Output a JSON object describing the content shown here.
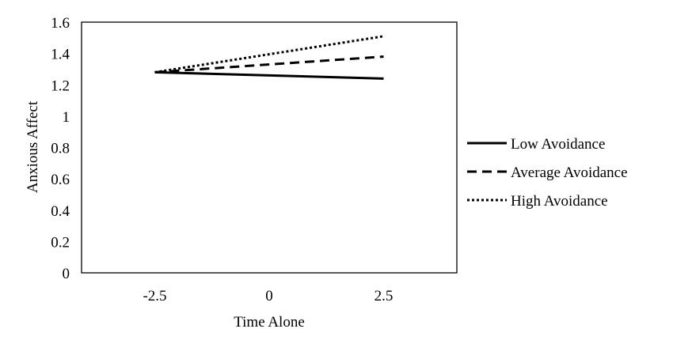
{
  "chart_data": {
    "type": "line",
    "title": "",
    "xlabel": "Time Alone",
    "ylabel": "Anxious Affect",
    "x": [
      -2.5,
      2.5
    ],
    "xticks": [
      "-2.5",
      "0",
      "2.5"
    ],
    "xlim": [
      -4.1,
      4.1
    ],
    "ylim": [
      0,
      1.6
    ],
    "yticks": [
      "0",
      "0.2",
      "0.4",
      "0.6",
      "0.8",
      "1",
      "1.2",
      "1.4",
      "1.6"
    ],
    "grid": false,
    "legend_position": "right",
    "series": [
      {
        "name": "Low Avoidance",
        "style": "solid",
        "values": [
          1.28,
          1.24
        ]
      },
      {
        "name": "Average Avoidance",
        "style": "dashed",
        "values": [
          1.28,
          1.38
        ]
      },
      {
        "name": "High Avoidance",
        "style": "dotted",
        "values": [
          1.28,
          1.51
        ]
      }
    ]
  }
}
